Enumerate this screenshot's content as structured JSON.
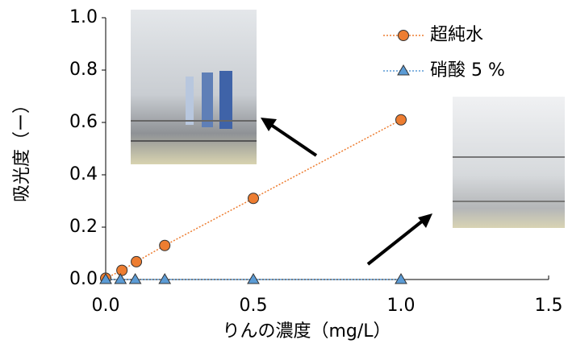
{
  "chart_data": {
    "type": "line",
    "xlabel": "りんの濃度（mg/L）",
    "ylabel": "吸光度（ー）",
    "xlim": [
      0,
      1.5
    ],
    "ylim": [
      0,
      1.0
    ],
    "xticks": [
      {
        "value": 0,
        "label": "0.0"
      },
      {
        "value": 0.5,
        "label": "0.5"
      },
      {
        "value": 1,
        "label": "1.0"
      },
      {
        "value": 1.5,
        "label": "1.5"
      }
    ],
    "yticks": [
      {
        "value": 0,
        "label": "0.0"
      },
      {
        "value": 0.2,
        "label": "0.2"
      },
      {
        "value": 0.4,
        "label": "0.4"
      },
      {
        "value": 0.6,
        "label": "0.6"
      },
      {
        "value": 0.8,
        "label": "0.8"
      },
      {
        "value": 1,
        "label": "1.0"
      }
    ],
    "legend": "upper right",
    "series": [
      {
        "name": "超純水",
        "color": "#ed7d31",
        "marker": "circle",
        "x": [
          0,
          0.055,
          0.104,
          0.2,
          0.5,
          1.0
        ],
        "values": [
          0.005,
          0.035,
          0.068,
          0.13,
          0.31,
          0.61
        ]
      },
      {
        "name": "硝酸 5 %",
        "color": "#5b9bd5",
        "marker": "triangle",
        "x": [
          0,
          0.05,
          0.1,
          0.2,
          0.5,
          1.0
        ],
        "values": [
          0,
          0,
          0,
          0,
          0,
          0
        ]
      }
    ]
  }
}
